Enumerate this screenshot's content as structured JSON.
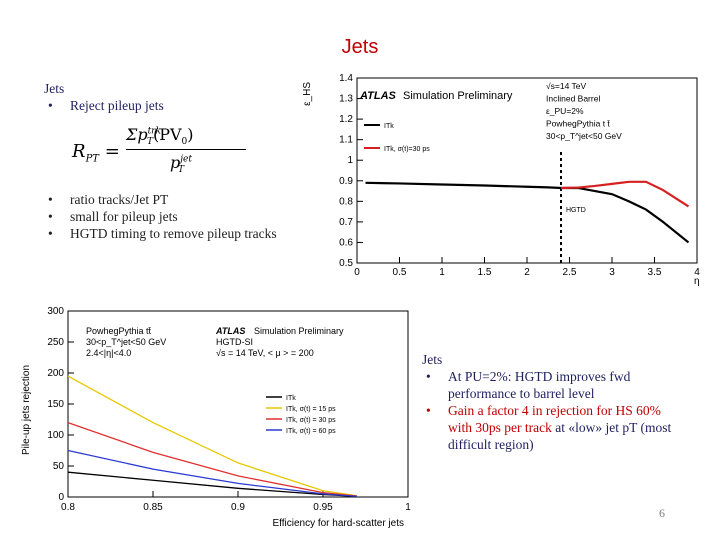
{
  "slide": {
    "title": "Jets",
    "page_number": "6"
  },
  "left_text": {
    "heading": "Jets",
    "bullet1": "Reject pileup jets",
    "bullets2": [
      "ratio tracks/Jet PT",
      "small for pileup jets",
      "HGTD timing to remove pileup tracks"
    ]
  },
  "right_text": {
    "heading": "Jets",
    "b1": "At PU=2%: HGTD improves fwd performance to barrel level",
    "b2_pre": "Gain a factor 4 in rejection for HS 60% with ",
    "b2_red": "30ps per track",
    "b2_post": " at «low» jet pT (most difficult region)"
  },
  "formula": {
    "lhs": "R",
    "lhs_sub": "PT",
    "sigma": "Σp",
    "num_sup": "trk",
    "num_sub": "T",
    "num_arg": "(PV",
    "num_arg_sub": "0",
    "num_close": ")",
    "den": "p",
    "den_sup": "jet",
    "den_sub": "T"
  },
  "top_chart": {
    "ylabel": "ε_HS",
    "xlabel": "η",
    "atlas": "ATLAS",
    "atlas_rest": "Simulation Preliminary",
    "info_lines": [
      "√s=14 TeV",
      "Inclined Barrel",
      "ε_PU=2%",
      "PowhegPythia t t̄",
      "30<p_T^jet<50 GeV"
    ],
    "legend": [
      "ITk",
      "ITk, σ(t)=30 ps"
    ],
    "hgtd_label": "HGTD",
    "colors": {
      "itk": "#000000",
      "hgtd": "#d62020"
    }
  },
  "bottom_chart": {
    "ylabel": "Pile-up jets rejection",
    "xlabel": "Efficiency for hard-scatter jets",
    "atlas": "ATLAS",
    "atlas_rest": "Simulation Preliminary",
    "info_left": [
      "PowhegPythia tt̄",
      "30<p_T^jet<50 GeV",
      "2.4<|η|<4.0"
    ],
    "info_right": [
      "HGTD-SI",
      "√s = 14 TeV, < μ > = 200"
    ],
    "legend": [
      "ITk",
      "ITk, σ(t) = 15 ps",
      "ITk, σ(t) = 30 ps",
      "ITk, σ(t) = 60 ps"
    ],
    "colors": [
      "#000000",
      "#e6c800",
      "#e03030",
      "#2a3ad0"
    ]
  },
  "chart_data": [
    {
      "type": "line",
      "title": "",
      "xlabel": "η",
      "ylabel": "ε_HS",
      "xlim": [
        0,
        4
      ],
      "ylim": [
        0.5,
        1.4
      ],
      "x_ticks": [
        "0",
        "0.5",
        "1",
        "1.5",
        "2",
        "2.5",
        "3",
        "3.5",
        "4"
      ],
      "y_ticks": [
        "0.5",
        "0.6",
        "0.7",
        "0.8",
        "0.9",
        "1",
        "1.1",
        "1.2",
        "1.3",
        "1.4"
      ],
      "vline": 2.4,
      "series": [
        {
          "name": "ITk",
          "x": [
            0.1,
            0.5,
            1.0,
            1.5,
            2.0,
            2.25,
            2.4,
            2.6,
            2.8,
            3.0,
            3.2,
            3.4,
            3.6,
            3.9
          ],
          "y": [
            0.89,
            0.887,
            0.882,
            0.877,
            0.871,
            0.868,
            0.865,
            0.865,
            0.85,
            0.835,
            0.8,
            0.76,
            0.7,
            0.6
          ]
        },
        {
          "name": "ITk, σ(t)=30 ps",
          "x": [
            2.4,
            2.6,
            2.8,
            3.0,
            3.2,
            3.4,
            3.6,
            3.9
          ],
          "y": [
            0.865,
            0.867,
            0.875,
            0.885,
            0.895,
            0.895,
            0.855,
            0.775
          ]
        }
      ]
    },
    {
      "type": "line",
      "title": "",
      "xlabel": "Efficiency for hard-scatter jets",
      "ylabel": "Pile-up jets rejection",
      "xlim": [
        0.8,
        1.0
      ],
      "ylim": [
        0,
        300
      ],
      "x_ticks": [
        "0.8",
        "0.85",
        "0.9",
        "0.95",
        "1"
      ],
      "y_ticks": [
        "0",
        "50",
        "100",
        "150",
        "200",
        "250",
        "300"
      ],
      "series": [
        {
          "name": "ITk",
          "x": [
            0.8,
            0.85,
            0.9,
            0.95,
            0.97
          ],
          "y": [
            40,
            27,
            14,
            4,
            1
          ]
        },
        {
          "name": "ITk, σ(t) = 15 ps",
          "x": [
            0.8,
            0.85,
            0.9,
            0.95,
            0.97
          ],
          "y": [
            195,
            120,
            55,
            10,
            2
          ]
        },
        {
          "name": "ITk, σ(t) = 30 ps",
          "x": [
            0.8,
            0.85,
            0.9,
            0.95,
            0.97
          ],
          "y": [
            120,
            72,
            34,
            7,
            1.5
          ]
        },
        {
          "name": "ITk, σ(t) = 60 ps",
          "x": [
            0.8,
            0.85,
            0.9,
            0.95,
            0.97
          ],
          "y": [
            75,
            45,
            22,
            5,
            1
          ]
        }
      ]
    }
  ]
}
